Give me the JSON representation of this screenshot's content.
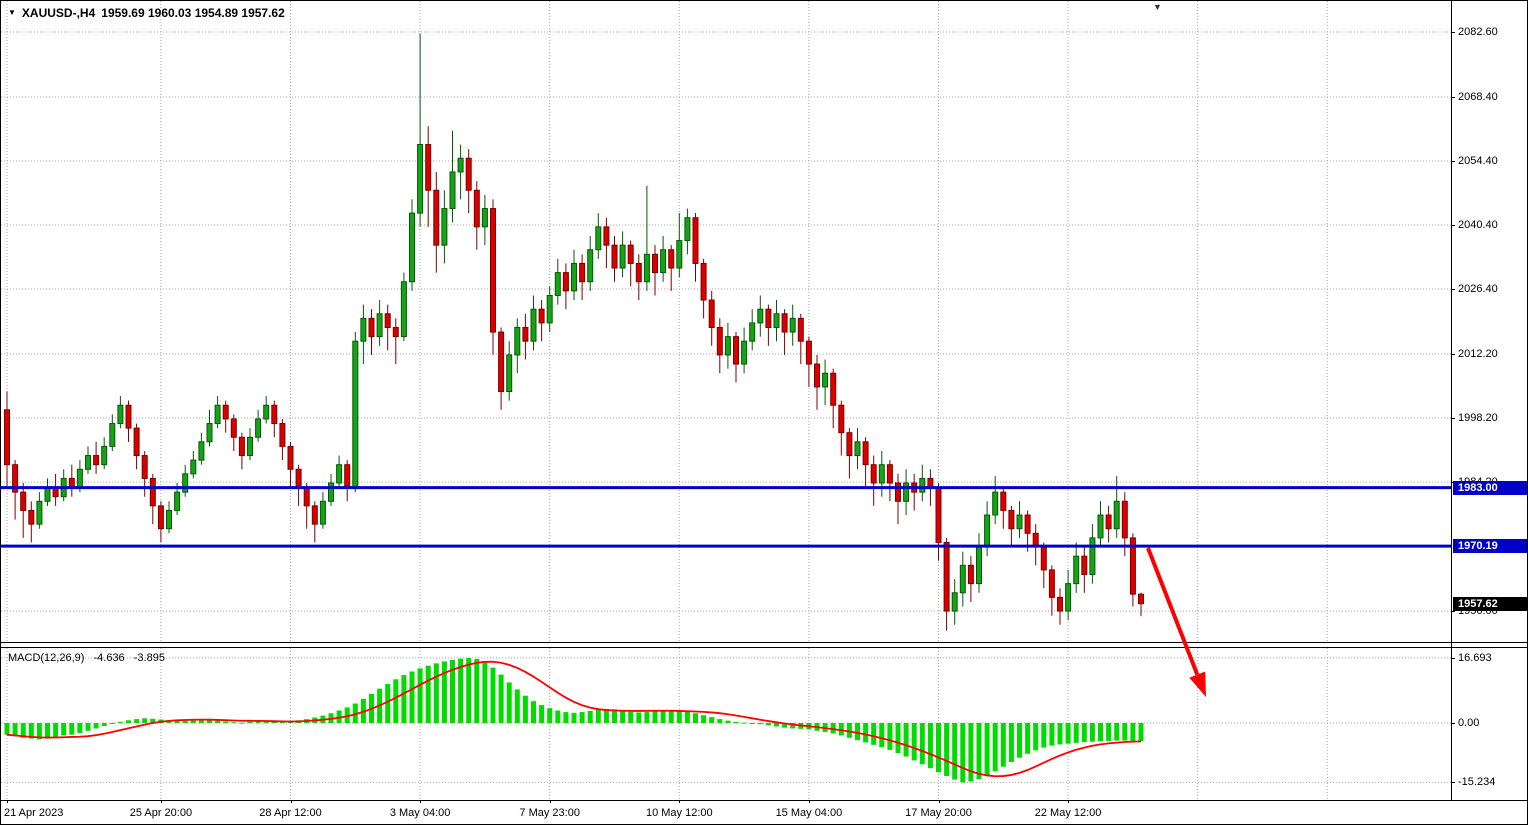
{
  "header": {
    "symbol_timeframe": "XAUUSD-,H4",
    "ohlc_values": "1959.69 1960.03 1954.89 1957.62"
  },
  "chart_data": {
    "type": "candlestick",
    "symbol": "XAUUSD-",
    "timeframe": "H4",
    "title": "XAUUSD-,H4",
    "current_ohlc": {
      "open": 1959.69,
      "high": 1960.03,
      "low": 1954.89,
      "close": 1957.62
    },
    "y_axis": {
      "labels": [
        "2082.60",
        "2068.40",
        "2054.40",
        "2040.40",
        "2026.40",
        "2012.20",
        "1998.20",
        "1984.20",
        "1956.00"
      ],
      "visible_top": 2089.4,
      "visible_bottom": 1948.9
    },
    "x_axis": {
      "ticks": [
        {
          "index": 0,
          "label": "21 Apr 2023"
        },
        {
          "index": 19,
          "label": "25 Apr 20:00"
        },
        {
          "index": 35,
          "label": "28 Apr 12:00"
        },
        {
          "index": 51,
          "label": "3 May 04:00"
        },
        {
          "index": 67,
          "label": "7 May 23:00"
        },
        {
          "index": 83,
          "label": "10 May 12:00"
        },
        {
          "index": 99,
          "label": "15 May 04:00"
        },
        {
          "index": 115,
          "label": "17 May 20:00"
        },
        {
          "index": 131,
          "label": "22 May 12:00"
        }
      ],
      "extra_gridline_indexes": [
        147,
        163
      ]
    },
    "horizontal_lines": [
      {
        "price": 1983.0,
        "label": "1983.00",
        "color": "#0000C8"
      },
      {
        "price": 1970.19,
        "label": "1970.19",
        "color": "#0000C8"
      }
    ],
    "price_badges": [
      {
        "label": "1983.00",
        "price": 1983.0,
        "bg": "#0000C8"
      },
      {
        "label": "1970.19",
        "price": 1970.19,
        "bg": "#0000C8"
      },
      {
        "label": "1957.62",
        "price": 1957.62,
        "bg": "#000000"
      }
    ],
    "candles": [
      [
        2000,
        2004,
        1983,
        1988
      ],
      [
        1988,
        1989,
        1976,
        1982
      ],
      [
        1982,
        1984,
        1972,
        1978
      ],
      [
        1978,
        1980,
        1971,
        1975
      ],
      [
        1975,
        1982,
        1974,
        1980
      ],
      [
        1980,
        1985,
        1979,
        1983
      ],
      [
        1983,
        1986,
        1979,
        1981
      ],
      [
        1981,
        1987,
        1980,
        1985
      ],
      [
        1985,
        1988,
        1981,
        1983
      ],
      [
        1983,
        1989,
        1982,
        1987
      ],
      [
        1987,
        1992,
        1986,
        1990
      ],
      [
        1990,
        1993,
        1986,
        1988
      ],
      [
        1988,
        1994,
        1987,
        1992
      ],
      [
        1992,
        1999,
        1991,
        1997
      ],
      [
        1997,
        2003,
        1996,
        2001
      ],
      [
        2001,
        2002,
        1993,
        1996
      ],
      [
        1996,
        1997,
        1987,
        1990
      ],
      [
        1990,
        1991,
        1981,
        1985
      ],
      [
        1985,
        1986,
        1975,
        1979
      ],
      [
        1979,
        1980,
        1971,
        1974
      ],
      [
        1974,
        1980,
        1973,
        1978
      ],
      [
        1978,
        1984,
        1977,
        1982
      ],
      [
        1982,
        1988,
        1981,
        1986
      ],
      [
        1986,
        1991,
        1985,
        1989
      ],
      [
        1989,
        1995,
        1988,
        1993
      ],
      [
        1993,
        2000,
        1992,
        1997
      ],
      [
        1997,
        2003,
        1996,
        2001
      ],
      [
        2001,
        2002,
        1995,
        1998
      ],
      [
        1998,
        1999,
        1991,
        1994
      ],
      [
        1994,
        1995,
        1987,
        1990
      ],
      [
        1990,
        1996,
        1989,
        1994
      ],
      [
        1994,
        2000,
        1993,
        1998
      ],
      [
        1998,
        2003,
        1997,
        2001
      ],
      [
        2001,
        2002,
        1994,
        1997
      ],
      [
        1997,
        1998,
        1989,
        1992
      ],
      [
        1992,
        1993,
        1983,
        1987
      ],
      [
        1987,
        1988,
        1979,
        1983
      ],
      [
        1983,
        1984,
        1974,
        1979
      ],
      [
        1979,
        1980,
        1971,
        1975
      ],
      [
        1975,
        1982,
        1974,
        1980
      ],
      [
        1980,
        1986,
        1979,
        1984
      ],
      [
        1984,
        1990,
        1983,
        1988
      ],
      [
        1988,
        1989,
        1980,
        1983
      ],
      [
        1983,
        2017,
        1982,
        2015
      ],
      [
        2015,
        2023,
        2010,
        2020
      ],
      [
        2020,
        2022,
        2012,
        2016
      ],
      [
        2016,
        2024,
        2014,
        2021
      ],
      [
        2021,
        2023,
        2013,
        2018
      ],
      [
        2018,
        2020,
        2010,
        2016
      ],
      [
        2016,
        2030,
        2015,
        2028
      ],
      [
        2028,
        2046,
        2026,
        2043
      ],
      [
        2043,
        2082.3,
        2040,
        2058
      ],
      [
        2058,
        2062,
        2040,
        2048
      ],
      [
        2048,
        2052,
        2030,
        2036
      ],
      [
        2036,
        2048,
        2032,
        2044
      ],
      [
        2044,
        2061,
        2041,
        2052
      ],
      [
        2052,
        2058,
        2046,
        2055
      ],
      [
        2055,
        2057,
        2043,
        2048
      ],
      [
        2048,
        2050,
        2035,
        2040
      ],
      [
        2040,
        2047,
        2036,
        2044
      ],
      [
        2044,
        2046,
        2012,
        2017
      ],
      [
        2017,
        2018,
        2000,
        2004
      ],
      [
        2004,
        2015,
        2002,
        2012
      ],
      [
        2012,
        2020,
        2008,
        2018
      ],
      [
        2018,
        2021,
        2011,
        2015
      ],
      [
        2015,
        2025,
        2013,
        2022
      ],
      [
        2022,
        2024,
        2015,
        2019
      ],
      [
        2019,
        2027,
        2017,
        2025
      ],
      [
        2025,
        2033,
        2023,
        2030
      ],
      [
        2030,
        2032,
        2022,
        2026
      ],
      [
        2026,
        2035,
        2024,
        2032
      ],
      [
        2032,
        2034,
        2024,
        2028
      ],
      [
        2028,
        2038,
        2026,
        2035
      ],
      [
        2035,
        2043,
        2033,
        2040
      ],
      [
        2040,
        2042,
        2031,
        2036
      ],
      [
        2036,
        2038,
        2028,
        2031
      ],
      [
        2031,
        2039,
        2029,
        2036
      ],
      [
        2036,
        2037,
        2027,
        2032
      ],
      [
        2032,
        2034,
        2024,
        2028
      ],
      [
        2028,
        2049,
        2026,
        2034
      ],
      [
        2034,
        2036,
        2025,
        2030
      ],
      [
        2030,
        2038,
        2028,
        2035
      ],
      [
        2035,
        2036,
        2026,
        2031
      ],
      [
        2031,
        2043,
        2029,
        2037
      ],
      [
        2037,
        2044,
        2034,
        2042
      ],
      [
        2042,
        2043,
        2028,
        2032
      ],
      [
        2032,
        2033,
        2020,
        2024
      ],
      [
        2024,
        2026,
        2014,
        2018
      ],
      [
        2018,
        2020,
        2008,
        2012
      ],
      [
        2012,
        2019,
        2009,
        2016
      ],
      [
        2016,
        2017,
        2006,
        2010
      ],
      [
        2010,
        2018,
        2008,
        2015
      ],
      [
        2015,
        2022,
        2013,
        2019
      ],
      [
        2019,
        2025,
        2016,
        2022
      ],
      [
        2022,
        2023,
        2014,
        2018
      ],
      [
        2018,
        2024,
        2015,
        2021
      ],
      [
        2021,
        2022,
        2012,
        2017
      ],
      [
        2017,
        2023,
        2014,
        2020
      ],
      [
        2020,
        2021,
        2010,
        2015
      ],
      [
        2015,
        2016,
        2005,
        2010
      ],
      [
        2010,
        2012,
        2000,
        2005
      ],
      [
        2005,
        2011,
        2001,
        2008
      ],
      [
        2008,
        2009,
        1996,
        2001
      ],
      [
        2001,
        2002,
        1990,
        1995
      ],
      [
        1995,
        1996,
        1985,
        1990
      ],
      [
        1990,
        1996,
        1987,
        1993
      ],
      [
        1993,
        1994,
        1983,
        1988
      ],
      [
        1988,
        1990,
        1979,
        1984
      ],
      [
        1984,
        1991,
        1981,
        1988
      ],
      [
        1988,
        1989,
        1980,
        1984
      ],
      [
        1984,
        1986,
        1975,
        1980
      ],
      [
        1980,
        1987,
        1977,
        1984
      ],
      [
        1984,
        1986,
        1978,
        1982
      ],
      [
        1982,
        1988,
        1980,
        1985
      ],
      [
        1985,
        1987,
        1979,
        1983
      ],
      [
        1983,
        1984,
        1967,
        1971
      ],
      [
        1971,
        1972,
        1951.7,
        1956
      ],
      [
        1956,
        1963,
        1953,
        1960
      ],
      [
        1960,
        1969,
        1957,
        1966
      ],
      [
        1966,
        1968,
        1958,
        1962
      ],
      [
        1962,
        1973,
        1960,
        1970
      ],
      [
        1970,
        1980,
        1968,
        1977
      ],
      [
        1977,
        1985.5,
        1975,
        1982
      ],
      [
        1982,
        1983,
        1974,
        1978
      ],
      [
        1978,
        1979,
        1970,
        1974
      ],
      [
        1974,
        1980,
        1972,
        1977
      ],
      [
        1977,
        1978,
        1969,
        1973
      ],
      [
        1973,
        1975,
        1966,
        1970
      ],
      [
        1970,
        1971,
        1961,
        1965
      ],
      [
        1965,
        1966,
        1955,
        1959
      ],
      [
        1959,
        1961,
        1953,
        1956
      ],
      [
        1956,
        1965,
        1954,
        1962
      ],
      [
        1962,
        1971,
        1960,
        1968
      ],
      [
        1968,
        1970,
        1960,
        1964
      ],
      [
        1964,
        1975,
        1962,
        1972
      ],
      [
        1972,
        1980,
        1970,
        1977
      ],
      [
        1977,
        1979,
        1971,
        1974
      ],
      [
        1974,
        1985.5,
        1972,
        1980
      ],
      [
        1980,
        1982,
        1968,
        1972
      ],
      [
        1972,
        1973,
        1957,
        1959.7
      ],
      [
        1959.69,
        1960.03,
        1954.89,
        1957.62
      ]
    ],
    "indicator": {
      "label": "MACD(12,26,9)",
      "macd_value_text": "-4.636",
      "signal_value_text": "-3.895",
      "signal_period": 9,
      "axis_labels": [
        "16.693",
        "0.00",
        "-15.234"
      ],
      "histogram": [
        -3.0,
        -3.4,
        -3.8,
        -4.0,
        -4.2,
        -4.0,
        -3.6,
        -3.2,
        -3.0,
        -2.6,
        -2.0,
        -1.4,
        -0.8,
        -0.2,
        0.3,
        0.7,
        1.0,
        1.2,
        1.1,
        0.9,
        0.7,
        0.5,
        0.6,
        0.8,
        1.0,
        0.9,
        0.7,
        0.4,
        0.2,
        0.1,
        0.3,
        0.5,
        0.6,
        0.5,
        0.4,
        0.5,
        0.7,
        1.0,
        1.4,
        1.9,
        2.5,
        3.2,
        4.0,
        5.0,
        6.2,
        7.5,
        8.8,
        10.0,
        11.2,
        12.3,
        13.2,
        14.0,
        14.7,
        15.3,
        15.8,
        16.2,
        16.5,
        16.693,
        16.4,
        15.6,
        14.2,
        12.4,
        10.4,
        8.6,
        7.0,
        5.6,
        4.6,
        3.8,
        3.2,
        2.8,
        2.6,
        2.8,
        3.1,
        3.4,
        3.6,
        3.5,
        3.2,
        2.9,
        2.7,
        2.8,
        3.0,
        3.2,
        3.3,
        3.2,
        2.9,
        2.5,
        2.0,
        1.5,
        1.0,
        0.6,
        0.3,
        0.1,
        -0.1,
        -0.3,
        -0.6,
        -0.9,
        -1.2,
        -1.4,
        -1.5,
        -1.6,
        -2.0,
        -2.3,
        -2.7,
        -3.2,
        -3.8,
        -4.4,
        -5.0,
        -5.6,
        -6.2,
        -6.9,
        -7.7,
        -8.6,
        -9.6,
        -10.6,
        -11.6,
        -12.6,
        -13.6,
        -14.5,
        -15.234,
        -15.0,
        -14.4,
        -13.5,
        -12.4,
        -11.2,
        -10.0,
        -8.9,
        -7.9,
        -7.0,
        -6.3,
        -5.8,
        -5.5,
        -5.3,
        -5.1,
        -4.9,
        -4.8,
        -4.7,
        -4.6,
        -4.5,
        -4.5,
        -4.6,
        -4.636
      ]
    },
    "annotations": [
      {
        "type": "arrow",
        "color": "#FF0000",
        "width": 4,
        "from_xy": [
          1147,
          547
        ],
        "to_xy": [
          1205,
          696
        ]
      }
    ],
    "colors": {
      "background": "#FFFFFF",
      "grid": "#A9A9A9",
      "bull_fill": "#17A317",
      "bull_stroke": "#045A04",
      "bear_fill": "#DB0000",
      "bear_stroke": "#7C0000",
      "macd_bar": "#00DC00",
      "signal_line": "#FF0000",
      "text": "#000000",
      "arrow": "#FF0000"
    }
  }
}
